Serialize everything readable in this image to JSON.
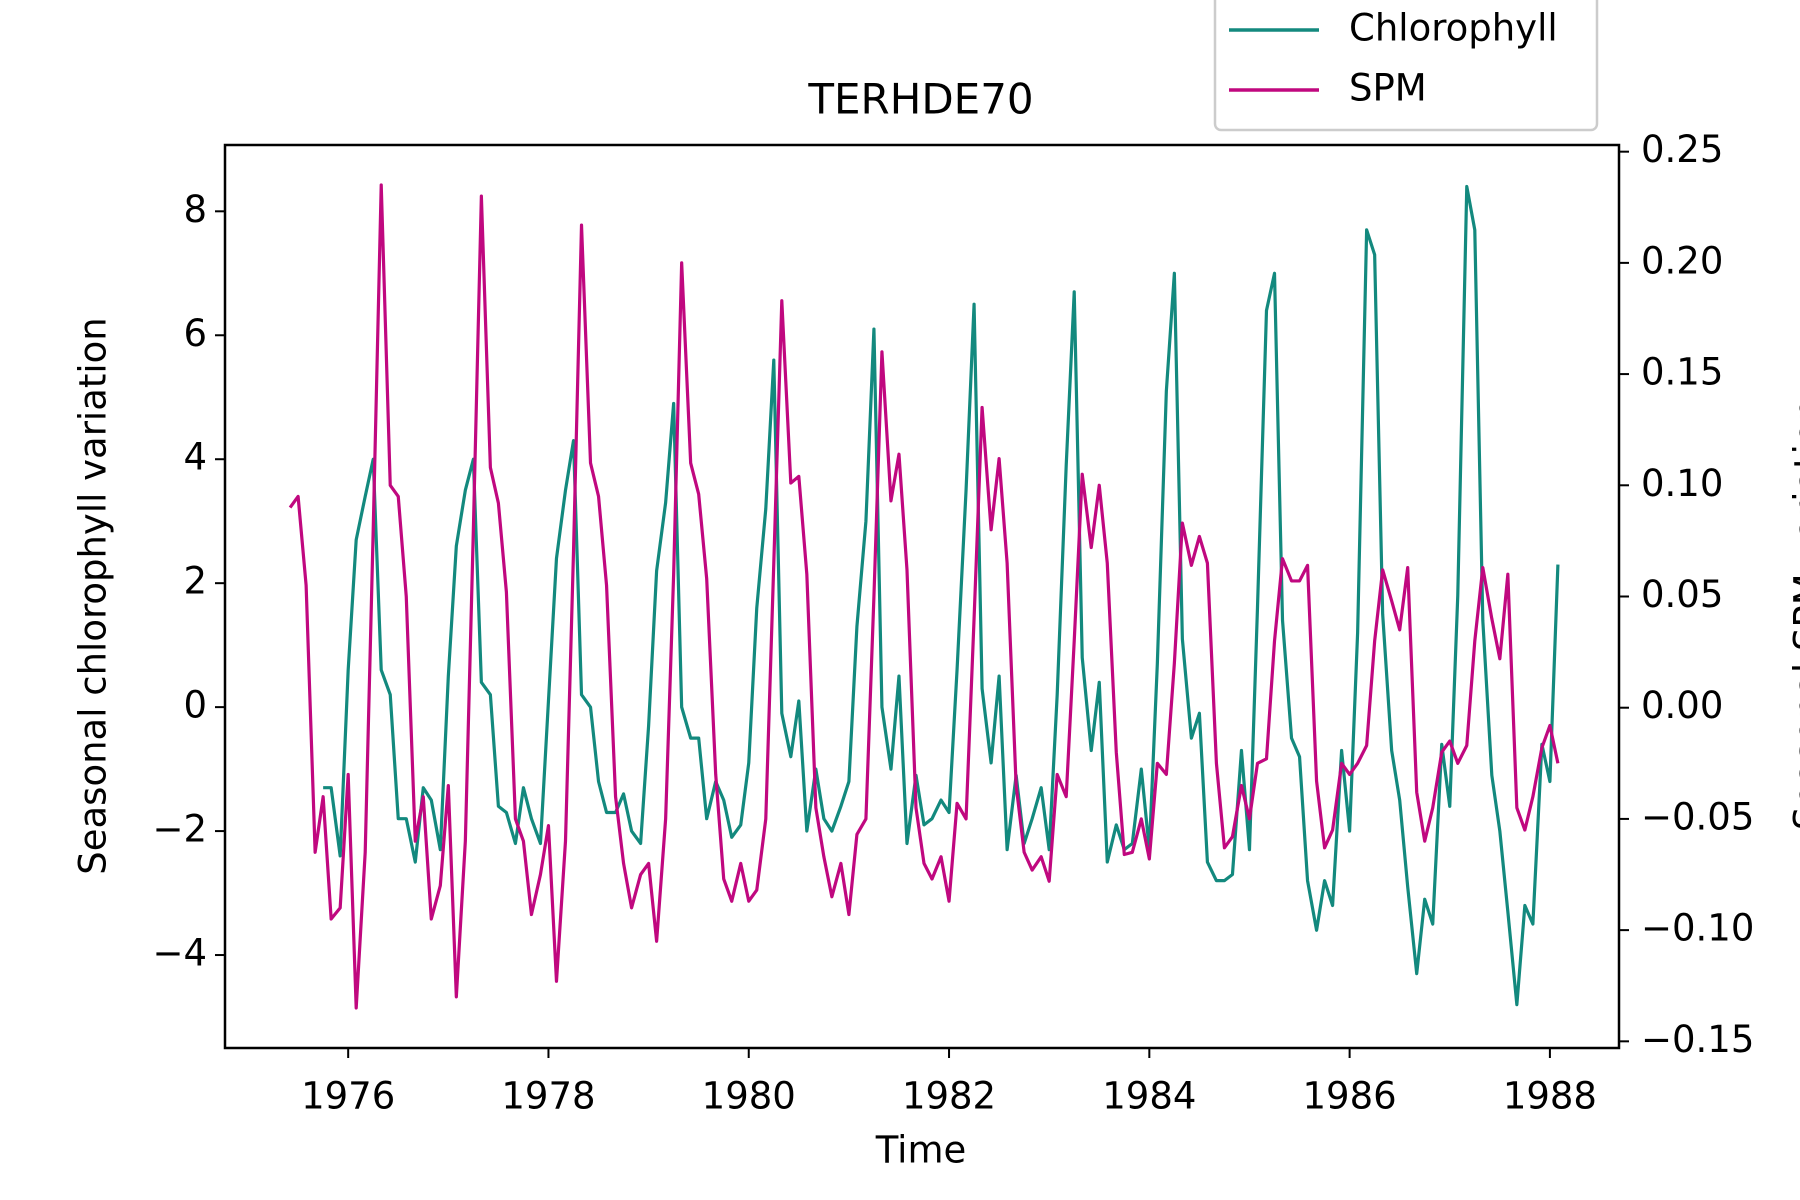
{
  "chart_data": {
    "type": "line",
    "title": "TERHDE70",
    "xlabel": "Time",
    "ylabel": "Seasonal chlorophyll variation",
    "y2label": "Seasonal SPM variation",
    "legend": "top-right-outside",
    "xlim": [
      1974.77,
      1988.69
    ],
    "xticks": [
      1976,
      1978,
      1980,
      1982,
      1984,
      1986,
      1988
    ],
    "ylim": [
      -5.5,
      9.07
    ],
    "yticks": [
      {
        "value": -4,
        "label": "−4"
      },
      {
        "value": -2,
        "label": "−2"
      },
      0,
      2,
      4,
      6,
      8
    ],
    "y2lim": [
      -0.153,
      0.253
    ],
    "y2ticks": [
      {
        "value": -0.15,
        "label": "−0.15"
      },
      {
        "value": -0.1,
        "label": "−0.10"
      },
      {
        "value": -0.05,
        "label": "−0.05"
      },
      {
        "value": 0,
        "label": "0.00"
      },
      {
        "value": 0.05,
        "label": "0.05"
      },
      {
        "value": 0.1,
        "label": "0.10"
      },
      {
        "value": 0.15,
        "label": "0.15"
      },
      {
        "value": 0.2,
        "label": "0.20"
      },
      {
        "value": 0.25,
        "label": "0.25"
      }
    ],
    "x": [
      1975.42,
      1975.5,
      1975.58,
      1975.67,
      1975.75,
      1975.83,
      1975.92,
      1976.0,
      1976.08,
      1976.17,
      1976.25,
      1976.33,
      1976.42,
      1976.5,
      1976.58,
      1976.67,
      1976.75,
      1976.83,
      1976.92,
      1977.0,
      1977.08,
      1977.17,
      1977.25,
      1977.33,
      1977.42,
      1977.5,
      1977.58,
      1977.67,
      1977.75,
      1977.83,
      1977.92,
      1978.0,
      1978.08,
      1978.17,
      1978.25,
      1978.33,
      1978.42,
      1978.5,
      1978.58,
      1978.67,
      1978.75,
      1978.83,
      1978.92,
      1979.0,
      1979.08,
      1979.17,
      1979.25,
      1979.33,
      1979.42,
      1979.5,
      1979.58,
      1979.67,
      1979.75,
      1979.83,
      1979.92,
      1980.0,
      1980.08,
      1980.17,
      1980.25,
      1980.33,
      1980.42,
      1980.5,
      1980.58,
      1980.67,
      1980.75,
      1980.83,
      1980.92,
      1981.0,
      1981.08,
      1981.17,
      1981.25,
      1981.33,
      1981.42,
      1981.5,
      1981.58,
      1981.67,
      1981.75,
      1981.83,
      1981.92,
      1982.0,
      1982.08,
      1982.17,
      1982.25,
      1982.33,
      1982.42,
      1982.5,
      1982.58,
      1982.67,
      1982.75,
      1982.83,
      1982.92,
      1983.0,
      1983.08,
      1983.17,
      1983.25,
      1983.33,
      1983.42,
      1983.5,
      1983.58,
      1983.67,
      1983.75,
      1983.83,
      1983.92,
      1984.0,
      1984.08,
      1984.17,
      1984.25,
      1984.33,
      1984.42,
      1984.5,
      1984.58,
      1984.67,
      1984.75,
      1984.83,
      1984.92,
      1985.0,
      1985.08,
      1985.17,
      1985.25,
      1985.33,
      1985.42,
      1985.5,
      1985.58,
      1985.67,
      1985.75,
      1985.83,
      1985.92,
      1986.0,
      1986.08,
      1986.17,
      1986.25,
      1986.33,
      1986.42,
      1986.5,
      1986.58,
      1986.67,
      1986.75,
      1986.83,
      1986.92,
      1987.0,
      1987.08,
      1987.17,
      1987.25,
      1987.33,
      1987.42,
      1987.5,
      1987.58,
      1987.67,
      1987.75,
      1987.83,
      1987.92,
      1988.0,
      1988.08
    ],
    "series": [
      {
        "name": "Chlorophyll",
        "color": "#13897e",
        "values": [
          null,
          null,
          null,
          null,
          -1.3,
          -1.3,
          -2.4,
          0.6,
          2.7,
          3.4,
          4.0,
          0.6,
          0.2,
          -1.8,
          -1.8,
          -2.5,
          -1.3,
          -1.5,
          -2.3,
          0.5,
          2.6,
          3.5,
          4.0,
          0.4,
          0.2,
          -1.6,
          -1.7,
          -2.2,
          -1.3,
          -1.8,
          -2.2,
          0.1,
          2.4,
          3.5,
          4.3,
          0.2,
          0.0,
          -1.2,
          -1.7,
          -1.7,
          -1.4,
          -2.0,
          -2.2,
          -0.3,
          2.2,
          3.3,
          4.9,
          0.0,
          -0.5,
          -0.5,
          -1.8,
          -1.2,
          -1.5,
          -2.1,
          -1.9,
          -0.9,
          1.6,
          3.2,
          5.6,
          -0.1,
          -0.8,
          0.1,
          -2.0,
          -1.0,
          -1.8,
          -2.0,
          -1.6,
          -1.2,
          1.3,
          3.0,
          6.1,
          0.0,
          -1.0,
          0.5,
          -2.2,
          -1.1,
          -1.9,
          -1.8,
          -1.5,
          -1.7,
          0.6,
          3.5,
          6.5,
          0.3,
          -0.9,
          0.5,
          -2.3,
          -1.1,
          -2.2,
          -1.8,
          -1.3,
          -2.3,
          0.2,
          3.9,
          6.7,
          0.8,
          -0.7,
          0.4,
          -2.5,
          -1.9,
          -2.3,
          -2.2,
          -1.0,
          -2.3,
          0.7,
          5.1,
          7.0,
          1.1,
          -0.5,
          -0.1,
          -2.5,
          -2.8,
          -2.8,
          -2.7,
          -0.7,
          -2.3,
          1.6,
          6.4,
          7.0,
          1.4,
          -0.5,
          -0.8,
          -2.8,
          -3.6,
          -2.8,
          -3.2,
          -0.7,
          -2.0,
          1.2,
          7.7,
          7.3,
          1.5,
          -0.7,
          -1.5,
          -2.9,
          -4.3,
          -3.1,
          -3.5,
          -0.6,
          -1.6,
          1.8,
          8.4,
          7.7,
          1.4,
          -1.1,
          -2.0,
          -3.3,
          -4.8,
          -3.2,
          -3.5,
          -0.6,
          -1.2,
          2.3
        ]
      },
      {
        "name": "SPM",
        "color": "#c0087f",
        "axis": "y2",
        "values": [
          0.09,
          0.095,
          0.055,
          -0.065,
          -0.04,
          -0.095,
          -0.09,
          -0.03,
          -0.135,
          -0.065,
          0.08,
          0.235,
          0.1,
          0.095,
          0.05,
          -0.06,
          -0.04,
          -0.095,
          -0.08,
          -0.035,
          -0.13,
          -0.06,
          0.08,
          0.23,
          0.108,
          0.092,
          0.052,
          -0.05,
          -0.06,
          -0.093,
          -0.075,
          -0.053,
          -0.123,
          -0.06,
          0.07,
          0.217,
          0.11,
          0.095,
          0.055,
          -0.04,
          -0.07,
          -0.09,
          -0.075,
          -0.07,
          -0.105,
          -0.05,
          0.06,
          0.2,
          0.11,
          0.096,
          0.058,
          -0.03,
          -0.077,
          -0.087,
          -0.07,
          -0.087,
          -0.082,
          -0.05,
          0.065,
          0.183,
          0.101,
          0.104,
          0.06,
          -0.045,
          -0.067,
          -0.085,
          -0.07,
          -0.093,
          -0.057,
          -0.05,
          0.05,
          0.16,
          0.093,
          0.114,
          0.062,
          -0.045,
          -0.07,
          -0.077,
          -0.067,
          -0.087,
          -0.043,
          -0.05,
          0.04,
          0.135,
          0.08,
          0.112,
          0.065,
          -0.035,
          -0.065,
          -0.073,
          -0.067,
          -0.078,
          -0.03,
          -0.04,
          0.03,
          0.105,
          0.072,
          0.1,
          0.065,
          -0.02,
          -0.066,
          -0.065,
          -0.05,
          -0.068,
          -0.025,
          -0.03,
          0.02,
          0.083,
          0.064,
          0.077,
          0.065,
          -0.025,
          -0.063,
          -0.058,
          -0.035,
          -0.05,
          -0.025,
          -0.023,
          0.03,
          0.067,
          0.057,
          0.057,
          0.064,
          -0.033,
          -0.063,
          -0.055,
          -0.025,
          -0.03,
          -0.025,
          -0.017,
          0.03,
          0.062,
          0.048,
          0.035,
          0.063,
          -0.038,
          -0.06,
          -0.045,
          -0.02,
          -0.015,
          -0.025,
          -0.017,
          0.03,
          0.063,
          0.04,
          0.022,
          0.06,
          -0.045,
          -0.055,
          -0.04,
          -0.018,
          -0.008,
          -0.025
        ]
      }
    ]
  }
}
